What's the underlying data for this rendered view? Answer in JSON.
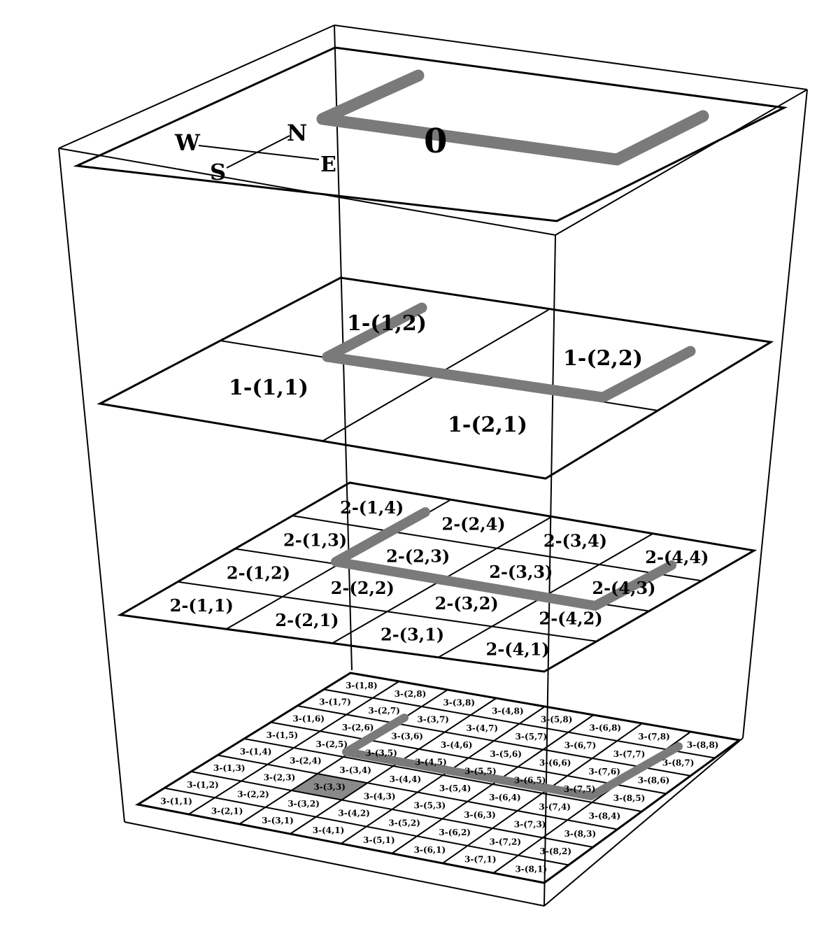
{
  "compass": {
    "w": "W",
    "n": "N",
    "s": "S",
    "e": "E"
  },
  "level0": {
    "label": "0"
  },
  "level1": {
    "cells": [
      "1-(1,1)",
      "1-(1,2)",
      "1-(2,1)",
      "1-(2,2)"
    ]
  },
  "level2": {
    "cells": [
      "2-(1,1)",
      "2-(1,2)",
      "2-(1,3)",
      "2-(1,4)",
      "2-(2,1)",
      "2-(2,2)",
      "2-(2,3)",
      "2-(2,4)",
      "2-(3,1)",
      "2-(3,2)",
      "2-(3,3)",
      "2-(3,4)",
      "2-(4,1)",
      "2-(4,2)",
      "2-(4,3)",
      "2-(4,4)"
    ]
  },
  "level3": {
    "cells": [
      "3-(1,1)",
      "3-(1,2)",
      "3-(1,3)",
      "3-(1,4)",
      "3-(1,5)",
      "3-(1,6)",
      "3-(1,7)",
      "3-(1,8)",
      "3-(2,1)",
      "3-(2,2)",
      "3-(2,3)",
      "3-(2,4)",
      "3-(2,5)",
      "3-(2,6)",
      "3-(2,7)",
      "3-(2,8)",
      "3-(3,1)",
      "3-(3,2)",
      "3-(3,3)",
      "3-(3,4)",
      "3-(3,5)",
      "3-(3,6)",
      "3-(3,7)",
      "3-(3,8)",
      "3-(4,1)",
      "3-(4,2)",
      "3-(4,3)",
      "3-(4,4)",
      "3-(4,5)",
      "3-(4,6)",
      "3-(4,7)",
      "3-(4,8)",
      "3-(5,1)",
      "3-(5,2)",
      "3-(5,3)",
      "3-(5,4)",
      "3-(5,5)",
      "3-(5,6)",
      "3-(5,7)",
      "3-(5,8)",
      "3-(6,1)",
      "3-(6,2)",
      "3-(6,3)",
      "3-(6,4)",
      "3-(6,5)",
      "3-(6,6)",
      "3-(6,7)",
      "3-(6,8)",
      "3-(7,1)",
      "3-(7,2)",
      "3-(7,3)",
      "3-(7,4)",
      "3-(7,5)",
      "3-(7,6)",
      "3-(7,7)",
      "3-(7,8)",
      "3-(8,1)",
      "3-(8,2)",
      "3-(8,3)",
      "3-(8,4)",
      "3-(8,5)",
      "3-(8,6)",
      "3-(8,7)",
      "3-(8,8)"
    ],
    "highlighted_cell": "3-(3,3)"
  },
  "colors": {
    "path": "#7a7a7a",
    "highlight": "#8a8a8a",
    "line": "#000000"
  }
}
